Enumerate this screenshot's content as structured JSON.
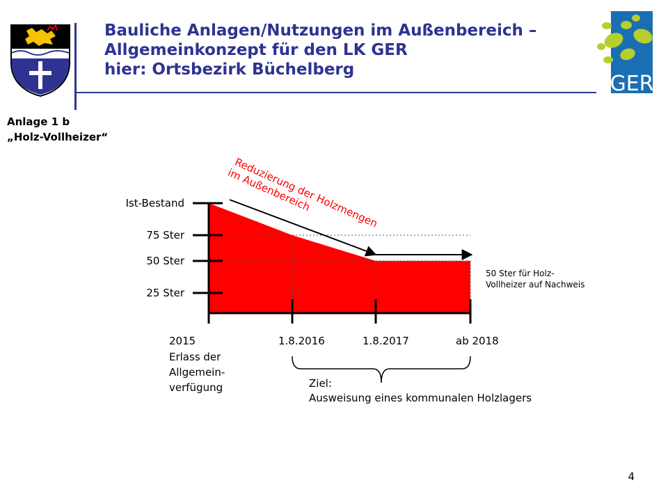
{
  "header": {
    "title_lines": [
      "Bauliche Anlagen/Nutzungen  im Außenbereich –",
      "Allgemeinkonzept für den LK GER",
      "hier: Ortsbezirk Büchelberg"
    ],
    "title_color": "#2e3392",
    "annex_line1": "Anlage 1 b",
    "annex_line2": "„Holz-Vollheizer“",
    "logo_left": "coat-of-arms",
    "logo_right_text": "GER",
    "logo_right_colors": {
      "dots": "#b5cf2c",
      "box": "#1a6fb3"
    }
  },
  "chart_data": {
    "type": "area",
    "title": "",
    "xlabel": "",
    "ylabel": "",
    "x_ticks": [
      "2015",
      "1.8.2016",
      "1.8.2017",
      "ab 2018"
    ],
    "y_ticks": [
      {
        "label": "Ist-Bestand",
        "value": 100
      },
      {
        "label": "75 Ster",
        "value": 75
      },
      {
        "label": "50 Ster",
        "value": 50
      },
      {
        "label": "25 Ster",
        "value": 25
      }
    ],
    "ylim": [
      0,
      100
    ],
    "points": [
      {
        "x": "2015",
        "y": 100
      },
      {
        "x": "1.8.2016",
        "y": 75
      },
      {
        "x": "1.8.2017",
        "y": 50
      },
      {
        "x": "ab 2018",
        "y": 50
      }
    ],
    "fill_color": "#ff0000",
    "arrow_label": "Reduzierung der Holzmengen im Außenbereich",
    "arrow_label_lines": [
      "Reduzierung der Holzmengen",
      "im Außenbereich"
    ],
    "arrow_label_color": "#ff0000",
    "side_note_lines": [
      "50 Ster für Holz-",
      "Vollheizer auf Nachweis"
    ],
    "x_subtitle_lines": [
      "Erlass der",
      "Allgemein-",
      "verfügung"
    ],
    "goal_lines": [
      "Ziel:",
      "Ausweisung eines kommunalen Holzlagers"
    ]
  },
  "footer": {
    "page_number": "4"
  }
}
